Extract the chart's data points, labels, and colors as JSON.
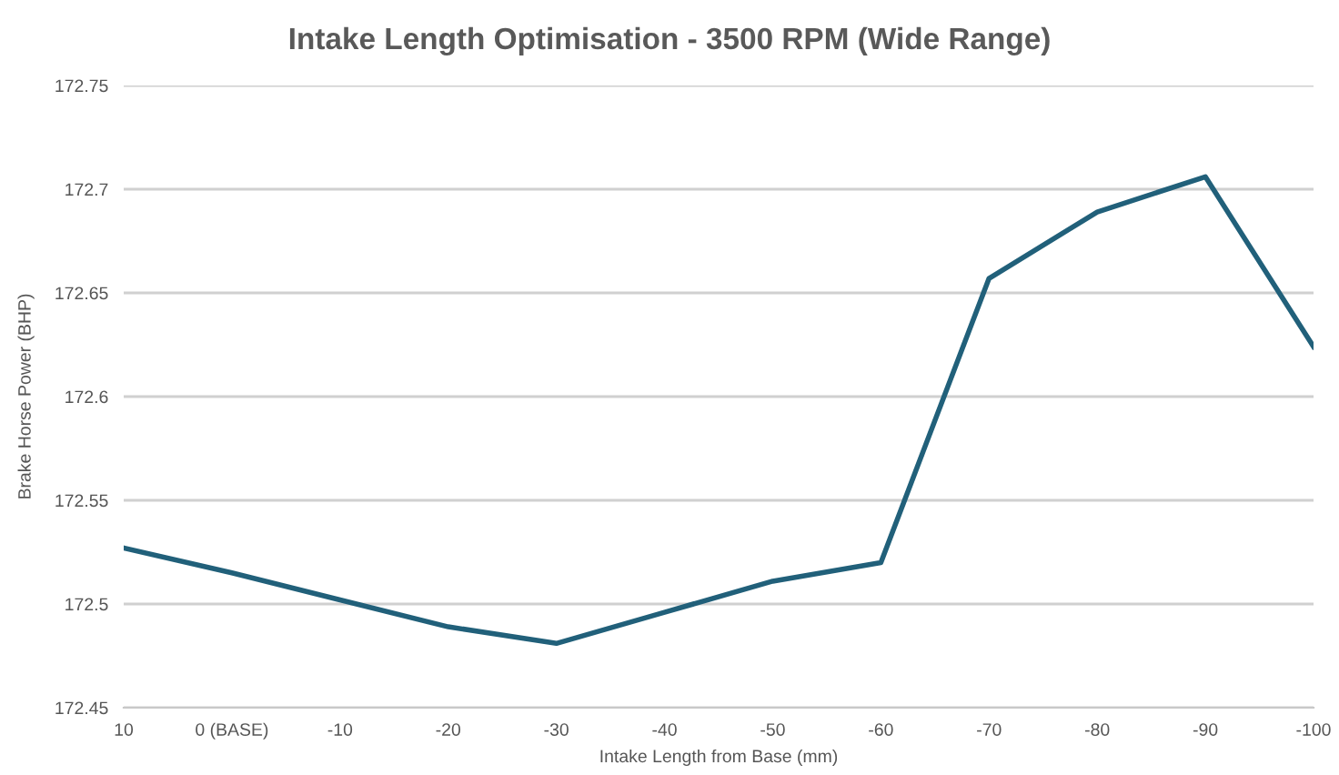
{
  "chart_data": {
    "type": "line",
    "title": "Intake Length Optimisation - 3500 RPM (Wide Range)",
    "xlabel": "Intake Length from Base (mm)",
    "ylabel": "Brake Horse Power (BHP)",
    "categories": [
      "10",
      "0 (BASE)",
      "-10",
      "-20",
      "-30",
      "-40",
      "-50",
      "-60",
      "-70",
      "-80",
      "-90",
      "-100"
    ],
    "series": [
      {
        "color": "#21607a",
        "values": [
          172.527,
          172.515,
          172.502,
          172.489,
          172.481,
          172.496,
          172.511,
          172.52,
          172.657,
          172.689,
          172.706,
          172.624
        ]
      }
    ],
    "ylim": [
      172.45,
      172.75
    ],
    "yticks": [
      172.45,
      172.5,
      172.55,
      172.6,
      172.65,
      172.7,
      172.75
    ],
    "grid": "y",
    "legend": false,
    "marker": "none",
    "line_style": "solid"
  }
}
